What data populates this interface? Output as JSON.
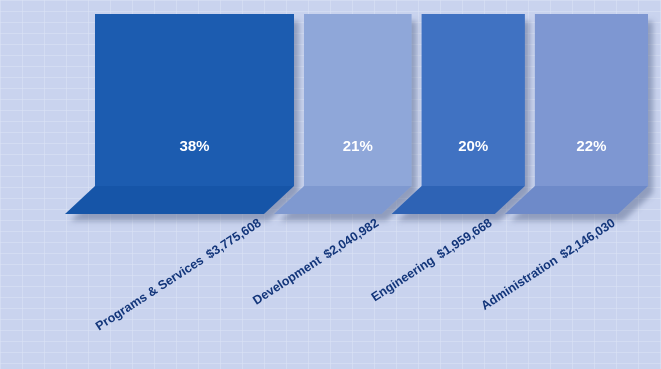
{
  "chart_data": {
    "type": "bar",
    "title": "",
    "xlabel": "",
    "ylabel": "",
    "categories": [
      "Programs & Services",
      "Development",
      "Engineering",
      "Administration"
    ],
    "amounts": [
      "$3,775,608",
      "$2,040,982",
      "$1,959,668",
      "$2,146,030"
    ],
    "values": [
      3775608,
      2040982,
      1959668,
      2146030
    ],
    "percent_labels": [
      "38%",
      "21%",
      "20%",
      "22%"
    ],
    "colors": {
      "background": "#c9d3ee",
      "bars": [
        "#1a5bb0",
        "#8fa7d9",
        "#3f72c2",
        "#7e97d2"
      ],
      "bar_bases": [
        "#1755a8",
        "#7f99d0",
        "#2f63b5",
        "#6e8ac9"
      ],
      "label_text": "#12357a",
      "percent_text": "#ffffff"
    }
  }
}
